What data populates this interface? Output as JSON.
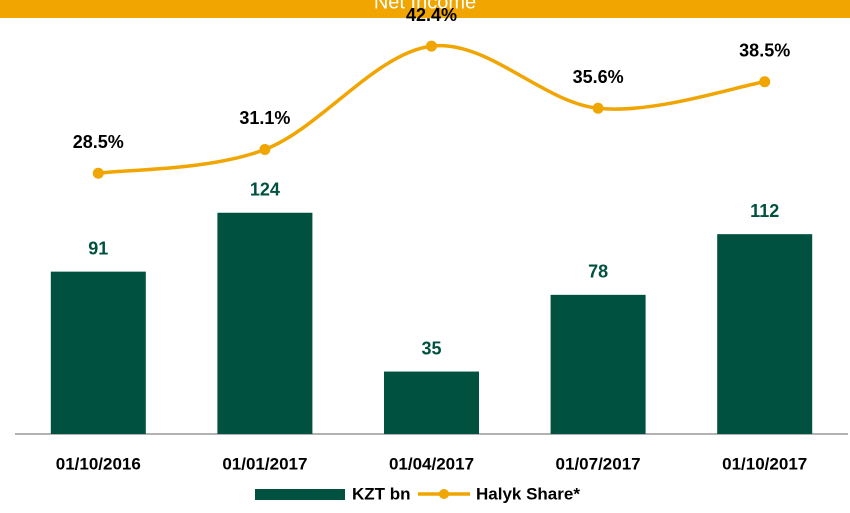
{
  "chart_data": {
    "type": "bar_line",
    "title": "Net Income",
    "categories": [
      "01/10/2016",
      "01/01/2017",
      "01/04/2017",
      "01/07/2017",
      "01/10/2017"
    ],
    "series": [
      {
        "name": "KZT bn",
        "color": "#00513f",
        "type": "bar",
        "values": [
          91,
          124,
          35,
          78,
          112
        ]
      },
      {
        "name": "Halyk Share*",
        "color": "#f0a500",
        "type": "line",
        "axis": "y2",
        "values": [
          28.5,
          31.1,
          42.4,
          35.6,
          38.5
        ],
        "value_labels": [
          "28.5%",
          "31.1%",
          "42.4%",
          "35.6%",
          "38.5%"
        ]
      }
    ],
    "ylim": [
      0,
      241
    ],
    "y2lim": [
      0,
      47
    ],
    "legend": "bottom"
  }
}
